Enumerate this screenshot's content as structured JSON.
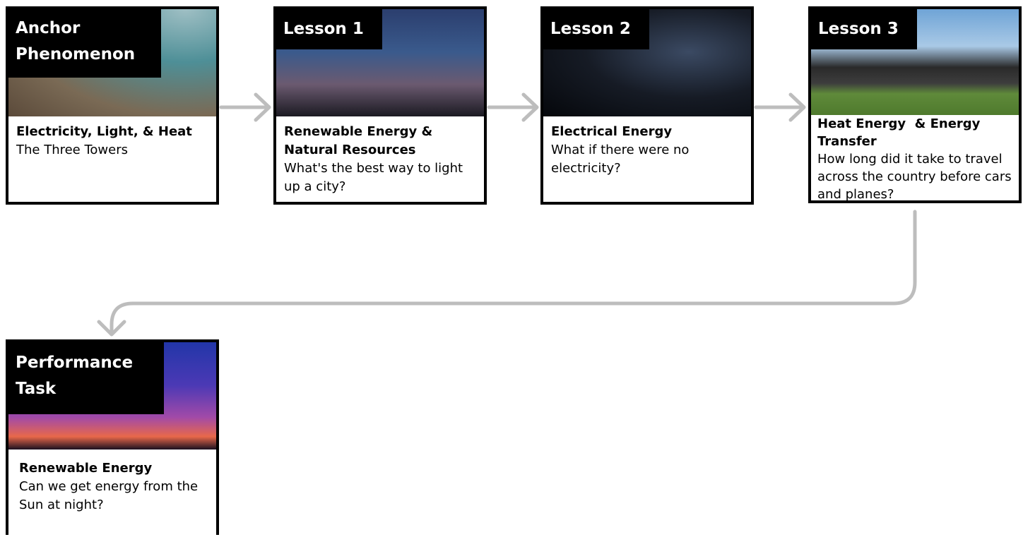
{
  "cards": [
    {
      "label": "Anchor Phenomenon",
      "title": "Electricity, Light, & Heat",
      "description": "The Three Towers"
    },
    {
      "label": "Lesson 1",
      "title": "Renewable Energy & Natural Resources",
      "description": "What's the best way to light up a city?"
    },
    {
      "label": "Lesson 2",
      "title": "Electrical Energy",
      "description": "What if there were no electricity?"
    },
    {
      "label": "Lesson 3",
      "title": "Heat Energy  & Energy Transfer",
      "description": "How long did it take to travel across the country before cars and planes?"
    },
    {
      "label": "Performance Task",
      "title": "Renewable Energy",
      "description": "Can we get energy from the Sun at night?"
    }
  ]
}
